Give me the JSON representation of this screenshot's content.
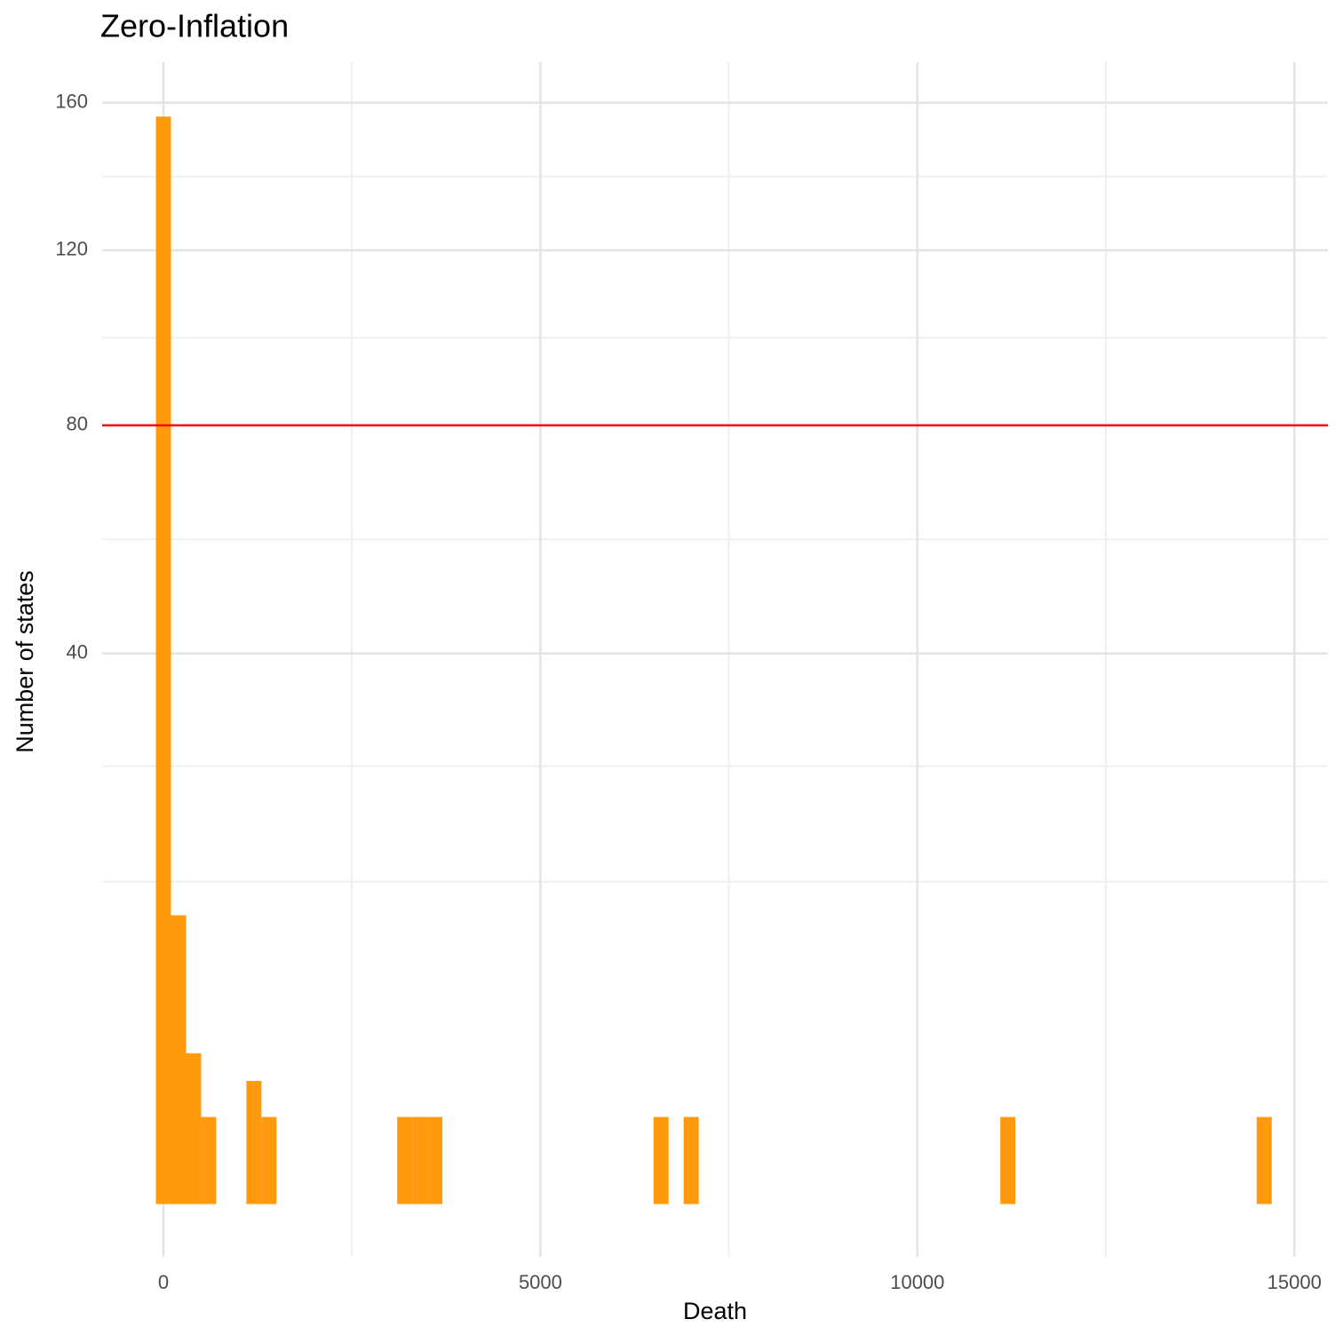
{
  "chart_data": {
    "type": "histogram",
    "title": "Zero-Inflation",
    "x_label": "Death",
    "y_label": "Number of states",
    "bins": [
      -100,
      100,
      300,
      500,
      700,
      900,
      1100,
      1300,
      1500,
      1700,
      1900,
      2100,
      2300,
      2500,
      2700,
      2900,
      3100,
      3300,
      3500,
      3700,
      3900,
      4100,
      4300,
      4500,
      4700,
      4900,
      5100,
      5300,
      5500,
      5700,
      5900,
      6100,
      6300,
      6500,
      6700,
      6900,
      7100,
      7300,
      7500,
      7700,
      7900,
      8100,
      8300,
      8500,
      8700,
      8900,
      9100,
      9300,
      9500,
      9700,
      9900,
      10100,
      10300,
      10500,
      10700,
      10900,
      11100,
      11300,
      11500,
      11700,
      11900,
      12100,
      12300,
      12500,
      12700,
      12900,
      13100,
      13300,
      13500,
      13700,
      13900,
      14100,
      14300,
      14500,
      14700
    ],
    "values": [
      156,
      11,
      3,
      1,
      0,
      0,
      2,
      1,
      0,
      0,
      0,
      0,
      0,
      0,
      0,
      0,
      1,
      1,
      1,
      0,
      0,
      0,
      0,
      0,
      0,
      0,
      0,
      0,
      0,
      0,
      0,
      0,
      0,
      1,
      0,
      1,
      0,
      0,
      0,
      0,
      0,
      0,
      0,
      0,
      0,
      0,
      0,
      0,
      0,
      0,
      0,
      0,
      0,
      0,
      0,
      0,
      1,
      0,
      0,
      0,
      0,
      0,
      0,
      0,
      0,
      0,
      0,
      0,
      0,
      0,
      0,
      0,
      0,
      1
    ],
    "color": "#ff9a0e",
    "xlim": [
      -813,
      15445
    ],
    "xticks": [
      0,
      5000,
      10000,
      15000
    ],
    "ylim": [
      0,
      172
    ],
    "yticks": [
      40,
      80,
      120,
      160
    ],
    "y_scale": "sqrt",
    "hline": 80,
    "hline_color": "#ff0000",
    "grid": true
  }
}
